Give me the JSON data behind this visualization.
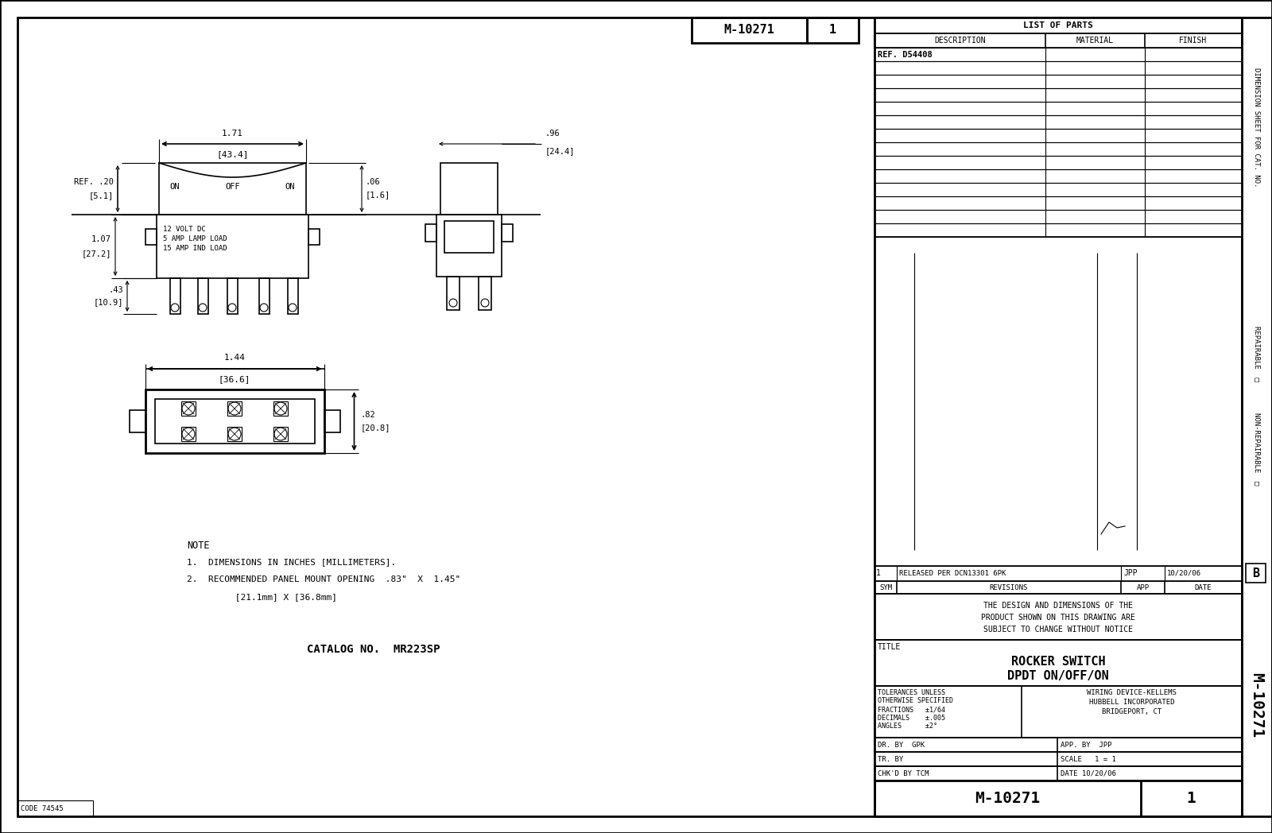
{
  "bg_color": "#ffffff",
  "line_color": "#000000",
  "title_block": {
    "drawing_number": "M-10271",
    "rev": "1",
    "title1": "ROCKER SWITCH",
    "title2": "DPDT ON/OFF/ON",
    "company_line1": "WIRING DEVICE-KELLEMS",
    "company_line2": "HUBBELL INCORPORATED",
    "company_line3": "BRIDGEPORT, CT",
    "dr_by": "DR. BY  GPK",
    "app_by": "APP. BY  JPP",
    "tr_by": "TR. BY",
    "scale": "SCALE   1 = 1",
    "chkd_by": "CHK'D BY TCM",
    "date": "DATE 10/20/06",
    "tolerances_line1": "TOLERANCES UNLESS",
    "tolerances_line2": "OTHERWISE SPECIFIED",
    "tolerances_line3": "FRACTIONS   ±1/64",
    "tolerances_line4": "DECIMALS    ±.005",
    "tolerances_line5": "ANGLES      ±2°",
    "list_of_parts_title": "LIST OF PARTS",
    "desc_header": "DESCRIPTION",
    "mat_header": "MATERIAL",
    "finish_header": "FINISH",
    "ref_part": "REF. D54408",
    "repairable_label": "REPAIRABLE",
    "non_repairable_label": "NON-REPAIRABLE",
    "dimension_sheet": "DIMENSION SHEET FOR CAT. NO.",
    "revisions_header": "REVISIONS",
    "sym": "SYM",
    "app_col": "APP",
    "date_label": "DATE",
    "design_note_line1": "THE DESIGN AND DIMENSIONS OF THE",
    "design_note_line2": "PRODUCT SHOWN ON THIS DRAWING ARE",
    "design_note_line3": "SUBJECT TO CHANGE WITHOUT NOTICE",
    "catalog_no": "CATALOG NO.  MR223SP",
    "code": "CODE 74545",
    "m_label": "M-10271",
    "rev_entry_sym": "1",
    "rev_entry_desc": "RELEASED PER DCN13301 6PK",
    "rev_entry_app": "JPP",
    "rev_entry_date": "10/20/06",
    "title_label": "TITLE"
  },
  "notes": [
    "NOTE",
    "1.  DIMENSIONS IN INCHES [MILLIMETERS].",
    "2.  RECOMMENDED PANEL MOUNT OPENING  .83\"  X  1.45\"",
    "         [21.1mm] X [36.8mm]"
  ]
}
